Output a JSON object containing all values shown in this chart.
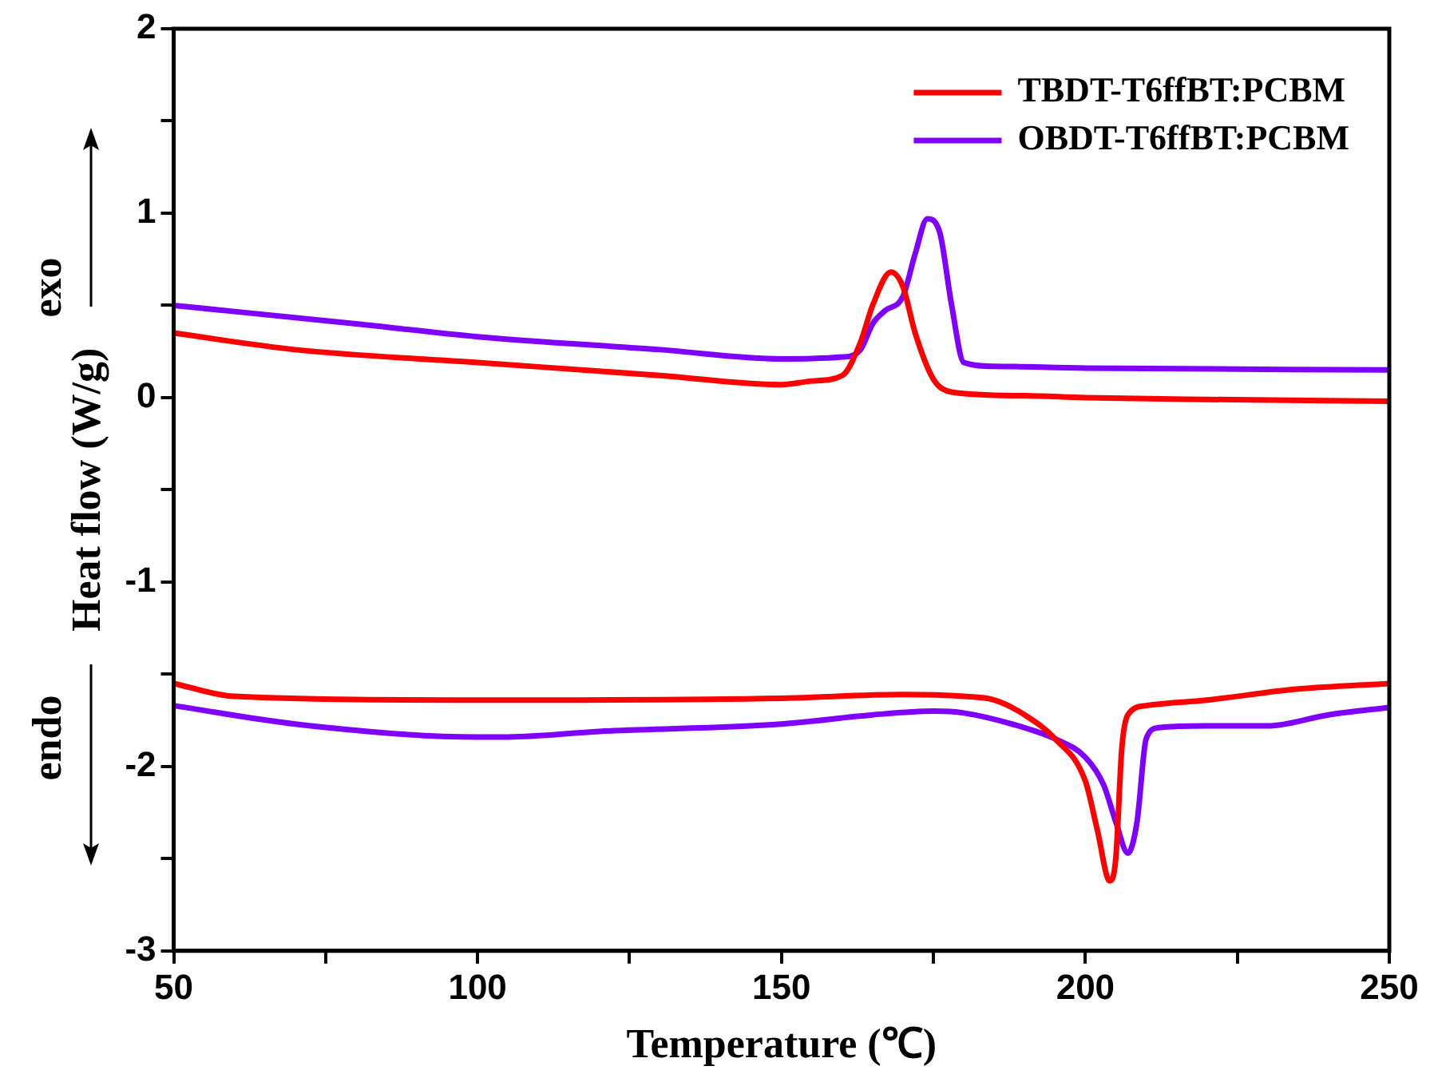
{
  "chart_data": {
    "type": "line",
    "xlabel": "Temperature (℃)",
    "ylabel": "Heat flow (W/g)",
    "annotations": [
      "exo",
      "endo"
    ],
    "xlim": [
      50,
      250
    ],
    "xticks": [
      50,
      {
        "value": 75,
        "label": null
      },
      100,
      {
        "value": 125,
        "label": null
      },
      150,
      {
        "value": 175,
        "label": null
      },
      200,
      {
        "value": 225,
        "label": null
      },
      250
    ],
    "ylim": [
      -3,
      2
    ],
    "yticks": [
      -3,
      {
        "value": -2.5,
        "label": null
      },
      -2,
      {
        "value": -1.5,
        "label": null
      },
      -1,
      {
        "value": -0.5,
        "label": null
      },
      0,
      {
        "value": 0.5,
        "label": null
      },
      1,
      {
        "value": 1.5,
        "label": null
      },
      2
    ],
    "grid": false,
    "legend": "top right",
    "marker": "none",
    "line_style": "solid",
    "series": [
      {
        "name": "TBDT-T6ffBT:PCBM",
        "color": "#ff0000",
        "x": [
          50,
          70,
          100,
          130,
          150,
          155,
          160,
          163,
          165,
          168,
          170,
          172,
          175,
          178,
          190,
          200,
          220,
          250
        ],
        "values": [
          0.35,
          0.26,
          0.19,
          0.12,
          0.07,
          0.09,
          0.12,
          0.3,
          0.5,
          0.68,
          0.6,
          0.35,
          0.1,
          0.03,
          0.01,
          0,
          -0.01,
          -0.02
        ]
      },
      {
        "name": "OBDT-T6ffBT:PCBM",
        "color": "#7f00ff",
        "x": [
          50,
          80,
          100,
          130,
          150,
          160,
          163,
          165,
          167,
          170,
          172,
          174,
          176,
          178,
          180,
          185,
          200,
          250
        ],
        "values": [
          0.5,
          0.4,
          0.33,
          0.26,
          0.21,
          0.22,
          0.26,
          0.4,
          0.47,
          0.55,
          0.78,
          0.97,
          0.9,
          0.5,
          0.19,
          0.17,
          0.16,
          0.15
        ]
      },
      {
        "color": "#ff0000",
        "x": [
          50,
          60,
          100,
          150,
          170,
          180,
          185,
          190,
          195,
          200,
          202,
          204,
          205,
          206,
          207,
          210,
          220,
          235,
          250
        ],
        "values": [
          -1.55,
          -1.62,
          -1.64,
          -1.63,
          -1.61,
          -1.62,
          -1.64,
          -1.72,
          -1.85,
          -2.08,
          -2.35,
          -2.62,
          -2.5,
          -1.9,
          -1.72,
          -1.67,
          -1.64,
          -1.58,
          -1.55
        ]
      },
      {
        "color": "#7f00ff",
        "x": [
          50,
          70,
          100,
          105,
          120,
          150,
          165,
          175,
          180,
          190,
          195,
          200,
          203,
          205,
          207,
          208.5,
          210,
          212,
          220,
          230,
          240,
          250
        ],
        "values": [
          -1.67,
          -1.77,
          -1.84,
          -1.84,
          -1.81,
          -1.77,
          -1.72,
          -1.7,
          -1.71,
          -1.79,
          -1.85,
          -1.95,
          -2.1,
          -2.3,
          -2.47,
          -2.3,
          -1.85,
          -1.79,
          -1.78,
          -1.78,
          -1.72,
          -1.68
        ]
      }
    ]
  }
}
